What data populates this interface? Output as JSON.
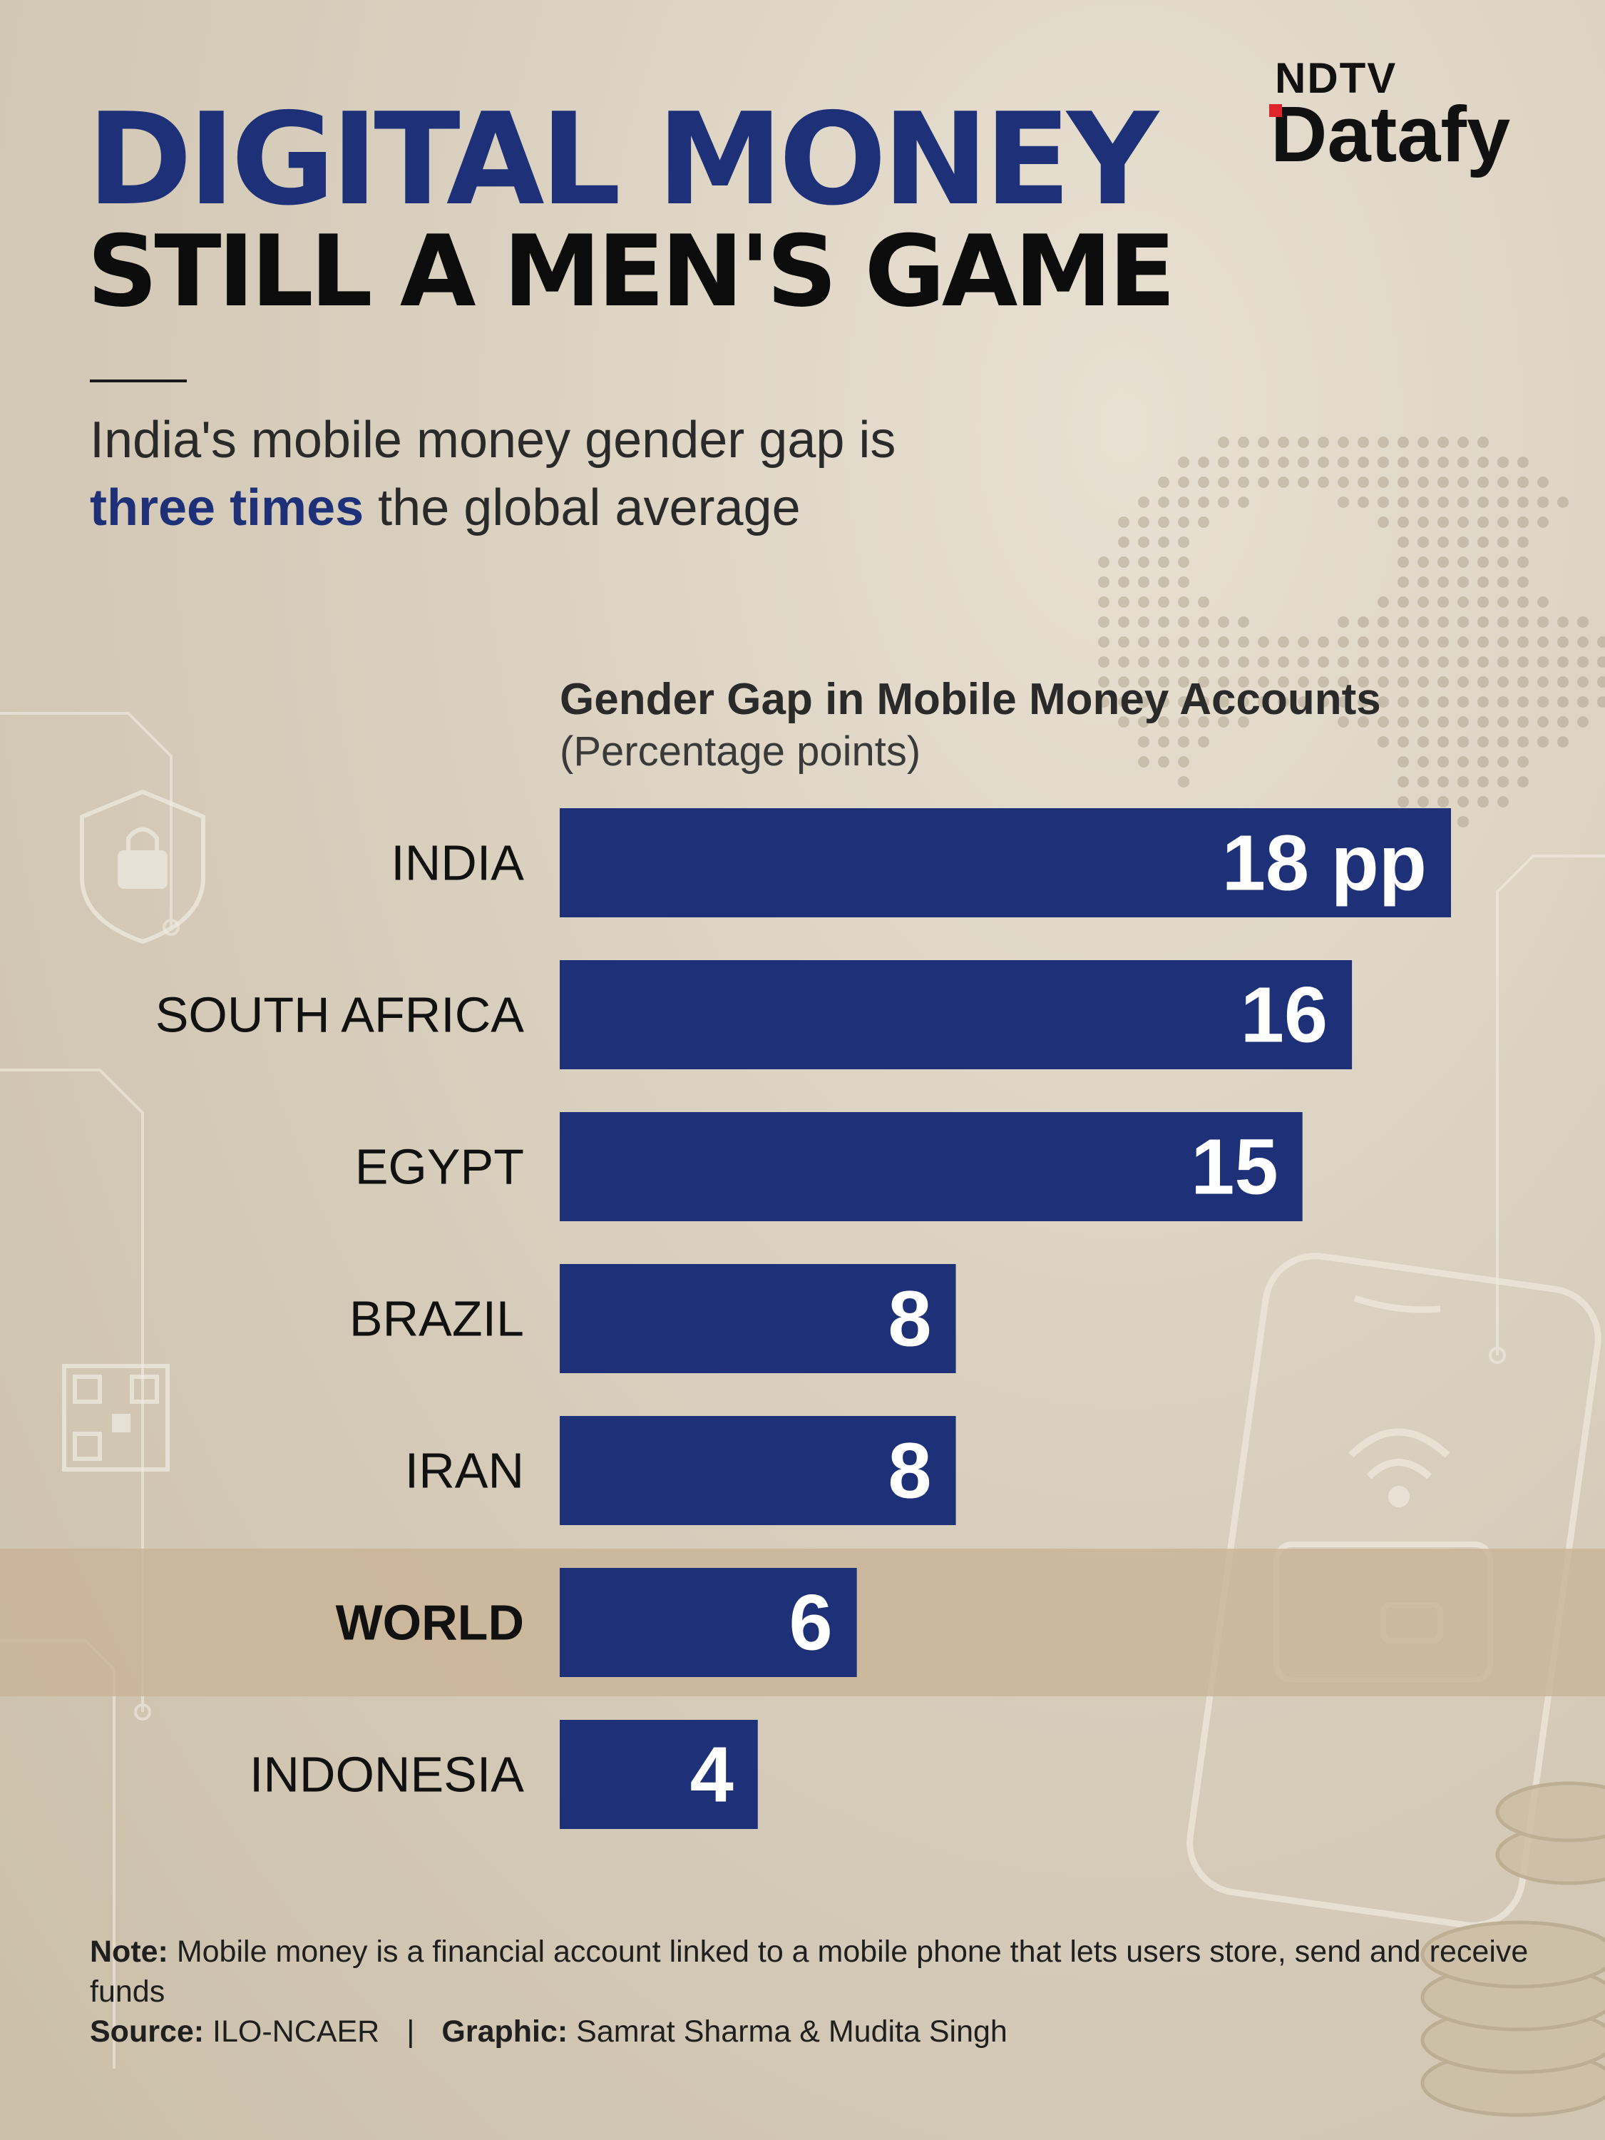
{
  "header": {
    "title_line1": "DIGITAL MONEY",
    "title_line2": "STILL A MEN'S GAME",
    "subtitle_line1": "India's mobile money gender gap is",
    "subtitle_highlight": "three times",
    "subtitle_rest": " the global average"
  },
  "brand": {
    "top": "NDTV",
    "bottom": "Datafy"
  },
  "colors": {
    "bar": "#1e3178",
    "highlight_band": "#c9b396",
    "title_accent": "#1e3178",
    "logo_dot": "#e0242b"
  },
  "chart_data": {
    "type": "bar",
    "orientation": "horizontal",
    "title": "Gender Gap in Mobile Money Accounts",
    "subtitle": "(Percentage points)",
    "categories": [
      "INDIA",
      "SOUTH AFRICA",
      "EGYPT",
      "BRAZIL",
      "IRAN",
      "WORLD",
      "INDONESIA"
    ],
    "values": [
      18,
      16,
      15,
      8,
      8,
      6,
      4
    ],
    "value_labels": [
      "18 pp",
      "16",
      "15",
      "8",
      "8",
      "6",
      "4"
    ],
    "highlighted_category": "WORLD",
    "xlim": [
      0,
      18
    ],
    "grid": false,
    "axes_visible": false
  },
  "footer": {
    "note_label": "Note:",
    "note_text": " Mobile money is a financial account linked to a mobile phone that lets users store, send and receive funds",
    "source_label": "Source:",
    "source_text": " ILO-NCAER",
    "separator": "|",
    "graphic_label": "Graphic:",
    "graphic_text": " Samrat Sharma & Mudita Singh"
  }
}
